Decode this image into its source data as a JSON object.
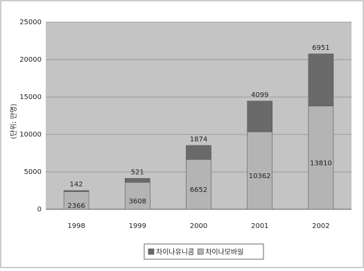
{
  "chart_data": {
    "type": "stacked_bar",
    "y_label": "(단위: 만명)",
    "categories": [
      "1998",
      "1999",
      "2000",
      "2001",
      "2002"
    ],
    "series": [
      {
        "name": "차이나모바일",
        "color": "#b4b4b4",
        "values": [
          2366,
          3608,
          6652,
          10362,
          13810
        ]
      },
      {
        "name": "차이나유니콤",
        "color": "#6a6a6a",
        "values": [
          142,
          521,
          1874,
          4099,
          6951
        ]
      }
    ],
    "legend_order": [
      1,
      0
    ],
    "ylim": [
      0,
      25000
    ],
    "yticks": [
      0,
      5000,
      10000,
      15000,
      20000,
      25000
    ],
    "grid": true
  }
}
